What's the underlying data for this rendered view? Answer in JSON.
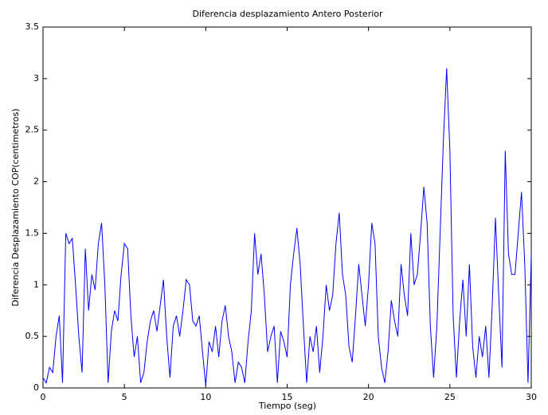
{
  "chart_data": {
    "type": "line",
    "title": "Diferencia desplazamiento Antero Posterior",
    "x_label": "Tiempo (seg)",
    "y_label": "Diferencia Desplazamiento COP(centimetros)",
    "x": [
      0,
      0.2,
      0.4,
      0.6,
      0.8,
      1,
      1.2,
      1.4,
      1.6,
      1.8,
      2,
      2.2,
      2.4,
      2.6,
      2.8,
      3,
      3.2,
      3.4,
      3.6,
      3.8,
      4,
      4.2,
      4.4,
      4.6,
      4.8,
      5,
      5.2,
      5.4,
      5.6,
      5.8,
      6,
      6.2,
      6.4,
      6.6,
      6.8,
      7,
      7.2,
      7.4,
      7.6,
      7.8,
      8,
      8.2,
      8.4,
      8.6,
      8.8,
      9,
      9.2,
      9.4,
      9.6,
      9.8,
      10,
      10.2,
      10.4,
      10.6,
      10.8,
      11,
      11.2,
      11.4,
      11.6,
      11.8,
      12,
      12.2,
      12.4,
      12.6,
      12.8,
      13,
      13.2,
      13.4,
      13.6,
      13.8,
      14,
      14.2,
      14.4,
      14.6,
      14.8,
      15,
      15.2,
      15.4,
      15.6,
      15.8,
      16,
      16.2,
      16.4,
      16.6,
      16.8,
      17,
      17.2,
      17.4,
      17.6,
      17.8,
      18,
      18.2,
      18.4,
      18.6,
      18.8,
      19,
      19.2,
      19.4,
      19.6,
      19.8,
      20,
      20.2,
      20.4,
      20.6,
      20.8,
      21,
      21.2,
      21.4,
      21.6,
      21.8,
      22,
      22.2,
      22.4,
      22.6,
      22.8,
      23,
      23.2,
      23.4,
      23.6,
      23.8,
      24,
      24.2,
      24.4,
      24.6,
      24.8,
      25,
      25.2,
      25.4,
      25.6,
      25.8,
      26,
      26.2,
      26.4,
      26.6,
      26.8,
      27,
      27.2,
      27.4,
      27.6,
      27.8,
      28,
      28.2,
      28.4,
      28.6,
      28.8,
      29,
      29.2,
      29.4,
      29.6,
      29.8,
      30
    ],
    "series": [
      {
        "name": "Diferencia",
        "color": "#0000ff",
        "values": [
          0.1,
          0.05,
          0.2,
          0.15,
          0.5,
          0.7,
          0.05,
          1.5,
          1.4,
          1.45,
          1.0,
          0.5,
          0.15,
          1.35,
          0.75,
          1.1,
          0.95,
          1.4,
          1.6,
          1.0,
          0.05,
          0.55,
          0.75,
          0.65,
          1.1,
          1.4,
          1.35,
          0.7,
          0.3,
          0.5,
          0.05,
          0.15,
          0.45,
          0.65,
          0.75,
          0.55,
          0.8,
          1.05,
          0.5,
          0.1,
          0.6,
          0.7,
          0.5,
          0.75,
          1.05,
          1.0,
          0.65,
          0.6,
          0.7,
          0.35,
          0.02,
          0.45,
          0.35,
          0.6,
          0.3,
          0.65,
          0.8,
          0.5,
          0.35,
          0.05,
          0.25,
          0.2,
          0.05,
          0.45,
          0.75,
          1.5,
          1.1,
          1.3,
          0.9,
          0.35,
          0.5,
          0.6,
          0.05,
          0.55,
          0.45,
          0.3,
          1.0,
          1.3,
          1.55,
          1.2,
          0.6,
          0.05,
          0.5,
          0.35,
          0.6,
          0.15,
          0.5,
          1.0,
          0.75,
          0.9,
          1.4,
          1.7,
          1.1,
          0.9,
          0.4,
          0.25,
          0.7,
          1.2,
          0.9,
          0.6,
          1.0,
          1.6,
          1.4,
          0.5,
          0.2,
          0.05,
          0.35,
          0.85,
          0.65,
          0.5,
          1.2,
          0.9,
          0.7,
          1.5,
          1.0,
          1.1,
          1.5,
          1.95,
          1.6,
          0.6,
          0.1,
          0.6,
          1.5,
          2.4,
          3.1,
          2.3,
          0.7,
          0.1,
          0.65,
          1.05,
          0.5,
          1.2,
          0.4,
          0.1,
          0.5,
          0.3,
          0.6,
          0.1,
          0.8,
          1.65,
          0.9,
          0.2,
          2.3,
          1.3,
          1.1,
          1.1,
          1.5,
          1.9,
          1.2,
          0.05,
          1.3
        ]
      }
    ],
    "xlim": [
      0,
      30
    ],
    "xticks": [
      0,
      5,
      10,
      15,
      20,
      25,
      30
    ],
    "ylim": [
      0,
      3.5
    ],
    "yticks": [
      0,
      0.5,
      1,
      1.5,
      2,
      2.5,
      3,
      3.5
    ],
    "grid": false
  }
}
